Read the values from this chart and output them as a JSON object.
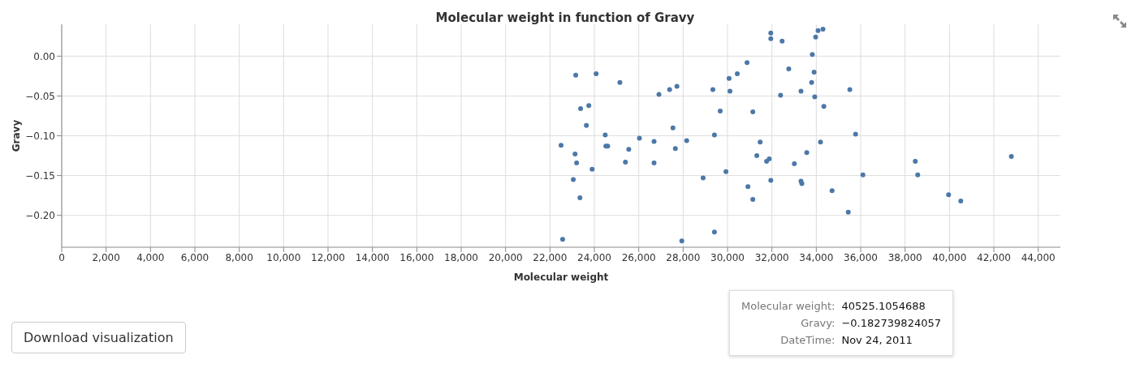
{
  "chart_data": {
    "type": "scatter",
    "title": "Molecular weight in function of Gravy",
    "xlabel": "Molecular weight",
    "ylabel": "Gravy",
    "xlim": [
      0,
      45000
    ],
    "xticks": [
      0,
      {
        "value": 2000,
        "label": "2,000"
      },
      {
        "value": 4000,
        "label": "4,000"
      },
      {
        "value": 6000,
        "label": "6,000"
      },
      {
        "value": 8000,
        "label": "8,000"
      },
      {
        "value": 10000,
        "label": "10,000"
      },
      {
        "value": 12000,
        "label": "12,000"
      },
      {
        "value": 14000,
        "label": "14,000"
      },
      {
        "value": 16000,
        "label": "16,000"
      },
      {
        "value": 18000,
        "label": "18,000"
      },
      {
        "value": 20000,
        "label": "20,000"
      },
      {
        "value": 22000,
        "label": "22,000"
      },
      {
        "value": 24000,
        "label": "24,000"
      },
      {
        "value": 26000,
        "label": "26,000"
      },
      {
        "value": 28000,
        "label": "28,000"
      },
      {
        "value": 30000,
        "label": "30,000"
      },
      {
        "value": 32000,
        "label": "32,000"
      },
      {
        "value": 34000,
        "label": "34,000"
      },
      {
        "value": 36000,
        "label": "36,000"
      },
      {
        "value": 38000,
        "label": "38,000"
      },
      {
        "value": 40000,
        "label": "40,000"
      },
      {
        "value": 42000,
        "label": "42,000"
      },
      {
        "value": 44000,
        "label": "44,000"
      }
    ],
    "ylim": [
      -0.24,
      0.04
    ],
    "yticks": [
      {
        "value": 0,
        "label": "0.00"
      },
      {
        "value": -0.05,
        "label": "−0.05"
      },
      {
        "value": -0.1,
        "label": "−0.10"
      },
      {
        "value": -0.15,
        "label": "−0.15"
      },
      {
        "value": -0.2,
        "label": "−0.20"
      }
    ],
    "grid": true,
    "legend": false,
    "marker": "circle",
    "series": [
      {
        "color": "#4c78a8",
        "x": [
          22500,
          22570,
          23050,
          23130,
          23160,
          23200,
          23350,
          23380,
          23640,
          23750,
          23900,
          24080,
          24490,
          24520,
          24600,
          25150,
          25400,
          25550,
          26030,
          26690,
          26690,
          26910,
          27390,
          27540,
          27650,
          27720,
          27940,
          28160,
          28900,
          29340,
          29410,
          29410,
          29670,
          29930,
          30070,
          30110,
          30440,
          30880,
          30920,
          31140,
          31140,
          31320,
          31470,
          31760,
          31880,
          31950,
          31950,
          31950,
          32390,
          32460,
          32760,
          33010,
          33310,
          33310,
          33350,
          33570,
          33790,
          33820,
          33900,
          33970,
          33930,
          34080,
          34190,
          34300,
          34340,
          34710,
          35440,
          35510,
          35770,
          36100,
          38460,
          38570,
          39960,
          40510,
          42790
        ],
        "values": [
          -0.112,
          -0.23,
          -0.155,
          -0.123,
          -0.024,
          -0.134,
          -0.178,
          -0.066,
          -0.087,
          -0.062,
          -0.142,
          -0.022,
          -0.099,
          -0.113,
          -0.113,
          -0.033,
          -0.133,
          -0.117,
          -0.103,
          -0.107,
          -0.134,
          -0.048,
          -0.042,
          -0.09,
          -0.116,
          -0.038,
          -0.232,
          -0.106,
          -0.153,
          -0.042,
          -0.099,
          -0.221,
          -0.069,
          -0.145,
          -0.028,
          -0.044,
          -0.022,
          -0.008,
          -0.164,
          -0.07,
          -0.18,
          -0.125,
          -0.108,
          -0.132,
          -0.129,
          -0.156,
          0.029,
          0.022,
          -0.049,
          0.019,
          -0.016,
          -0.135,
          -0.044,
          -0.157,
          -0.16,
          -0.121,
          -0.033,
          0.002,
          -0.02,
          0.024,
          -0.051,
          0.032,
          -0.108,
          0.034,
          -0.063,
          -0.169,
          -0.196,
          -0.042,
          -0.098,
          -0.149,
          -0.132,
          -0.149,
          -0.174,
          -0.182,
          -0.126
        ]
      }
    ],
    "annotations": [
      "Molecular weight: 40525.1054688",
      "Gravy: −0.182739824057",
      "DateTime: Nov 24, 2011",
      "Download visualization"
    ]
  }
}
